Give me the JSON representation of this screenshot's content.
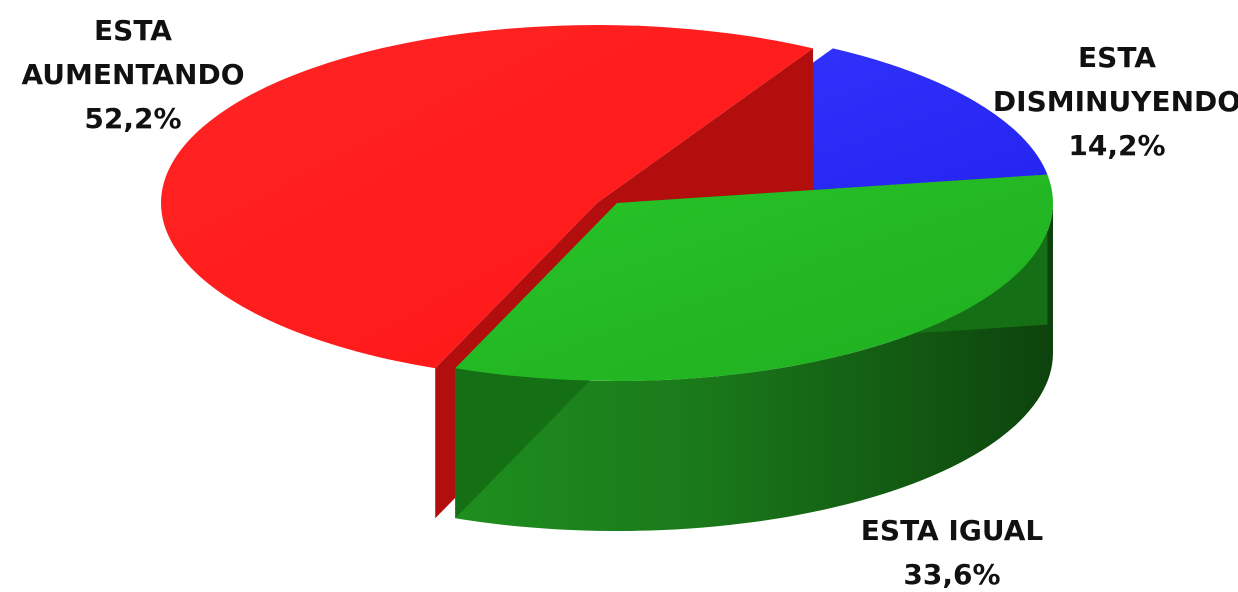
{
  "chart_data": {
    "type": "pie",
    "title": "",
    "series": [
      {
        "values": [
          52.2,
          14.2,
          33.6
        ],
        "labels": [
          "ESTA AUMENTANDO",
          "ESTA DISMINUYENDO",
          "ESTA IGUAL"
        ]
      }
    ],
    "slices": [
      {
        "label_lines": [
          "ESTA",
          "AUMENTANDO"
        ],
        "value_text": "52,2%",
        "value": 52.2,
        "color": "#ff1c1c"
      },
      {
        "label_lines": [
          "ESTA",
          "DISMINUYENDO"
        ],
        "value_text": "14,2%",
        "value": 14.2,
        "color": "#2c2cff"
      },
      {
        "label_lines": [
          "ESTA IGUAL"
        ],
        "value_text": "33,6%",
        "value": 33.6,
        "color": "#22bb22"
      }
    ],
    "legend": "none",
    "style": "3d-exploded"
  }
}
